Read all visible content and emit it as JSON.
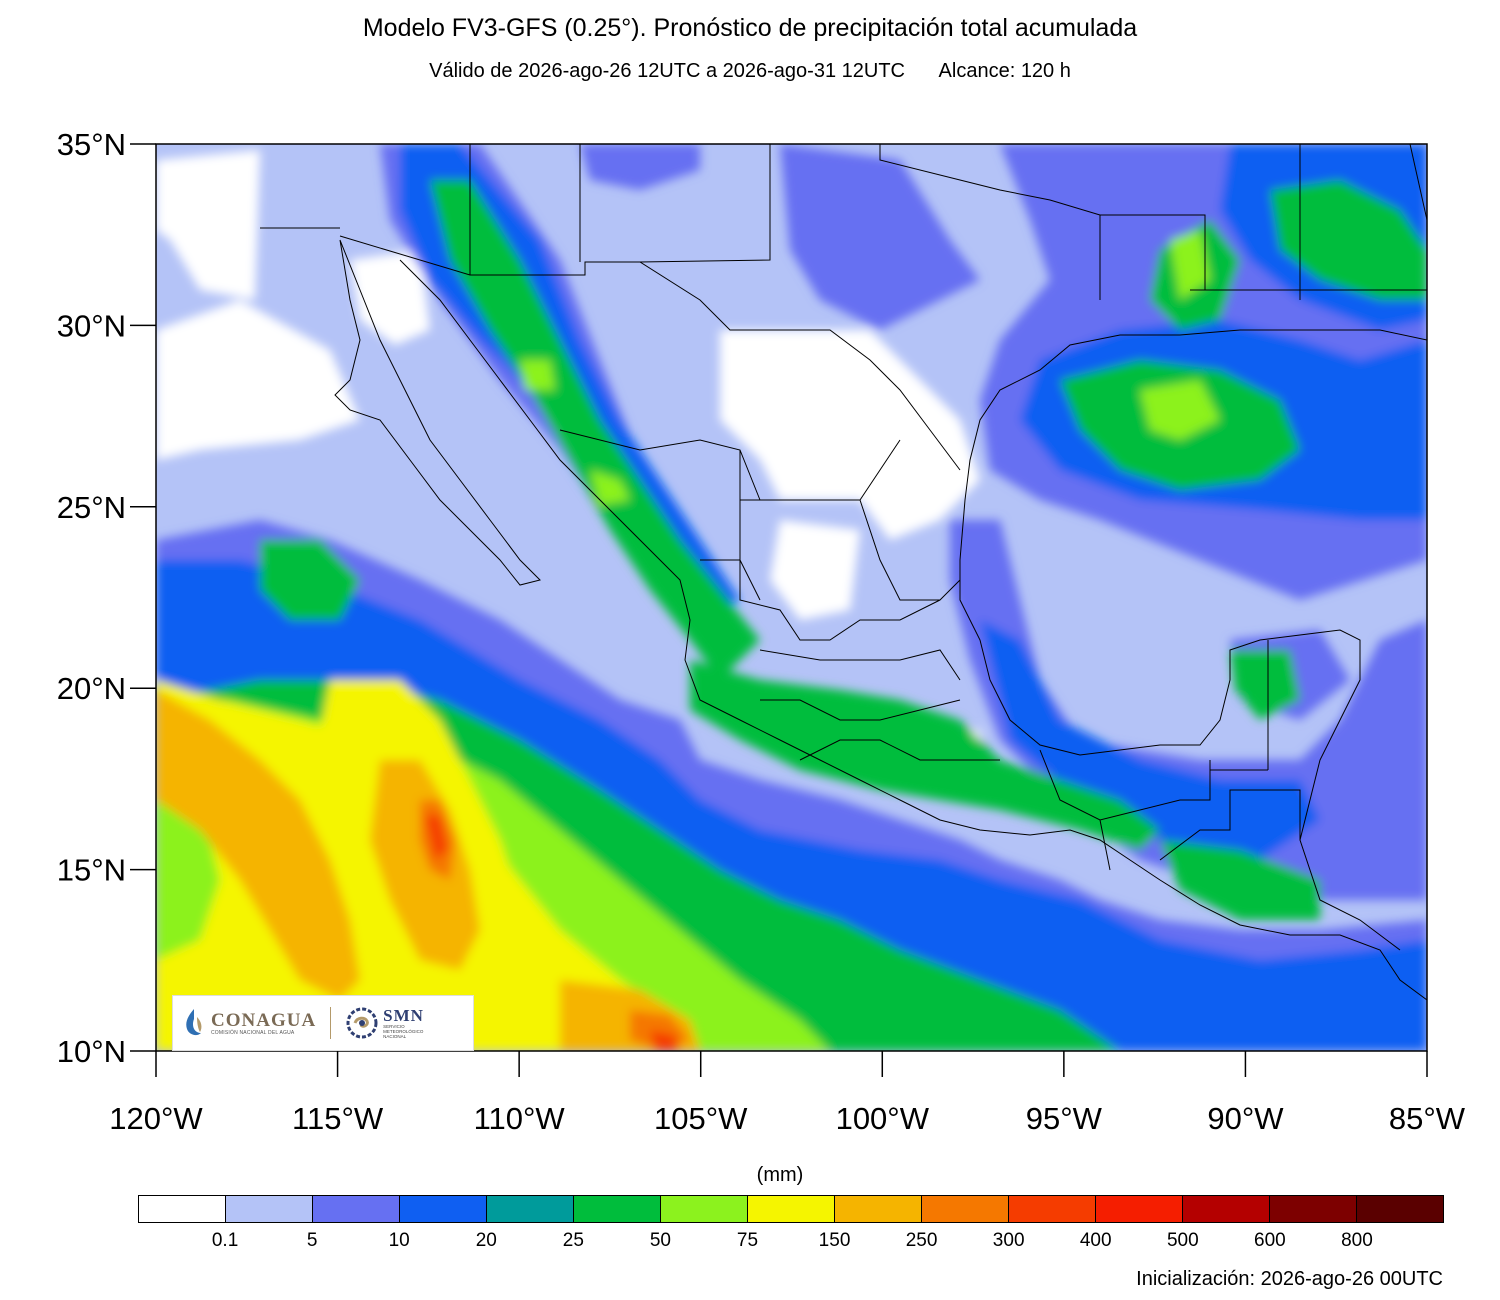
{
  "header": {
    "title": "Modelo FV3-GFS (0.25°). Pronóstico de precipitación total acumulada",
    "valid": "Válido de 2026-ago-26 12UTC a 2026-ago-31 12UTC",
    "range": "Alcance: 120 h"
  },
  "axes": {
    "lat_labels": [
      "35°N",
      "30°N",
      "25°N",
      "20°N",
      "15°N",
      "10°N"
    ],
    "lon_labels": [
      "120°W",
      "115°W",
      "110°W",
      "105°W",
      "100°W",
      "95°W",
      "90°W",
      "85°W"
    ]
  },
  "logos": {
    "conagua_name": "CONAGUA",
    "conagua_sub": "COMISIÓN NACIONAL DEL AGUA",
    "smn_name": "SMN",
    "smn_sub": "SERVICIO METEOROLÓGICO NACIONAL"
  },
  "legend": {
    "units": "(mm)",
    "colors": [
      "#ffffff",
      "#b4c3f7",
      "#6670f2",
      "#0f5ff2",
      "#009b9b",
      "#00bd3c",
      "#8cf21e",
      "#f5f500",
      "#f5b400",
      "#f57800",
      "#f53c00",
      "#f51e00",
      "#b40000",
      "#7d0000",
      "#5a0000"
    ],
    "ticks": [
      "0.1",
      "5",
      "10",
      "20",
      "25",
      "50",
      "75",
      "150",
      "250",
      "300",
      "400",
      "500",
      "600",
      "800"
    ]
  },
  "footer": {
    "init": "Inicialización: 2026-ago-26 00UTC"
  }
}
